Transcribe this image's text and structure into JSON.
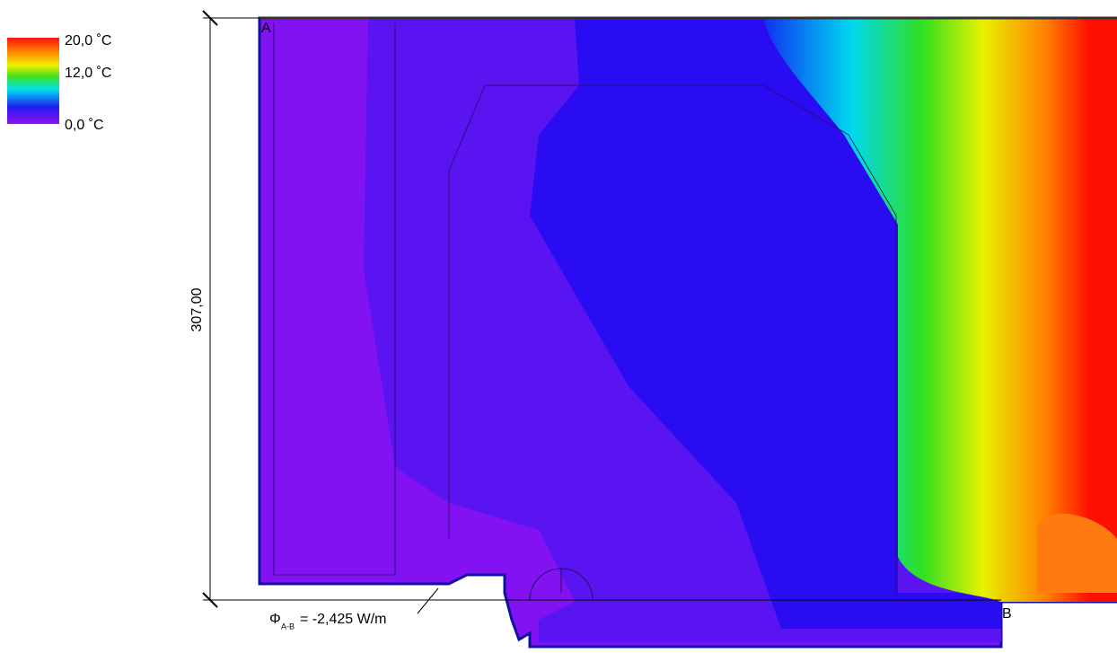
{
  "legend": {
    "labels": [
      "20,0 ˚C",
      "12,0 ˚C",
      "0,0 ˚C"
    ]
  },
  "points": {
    "start": "A",
    "end": "B"
  },
  "dimension": "307,00",
  "flux": {
    "symbol": "Φ",
    "subscript": "A-B",
    "text": "= -2,425 W/m"
  }
}
